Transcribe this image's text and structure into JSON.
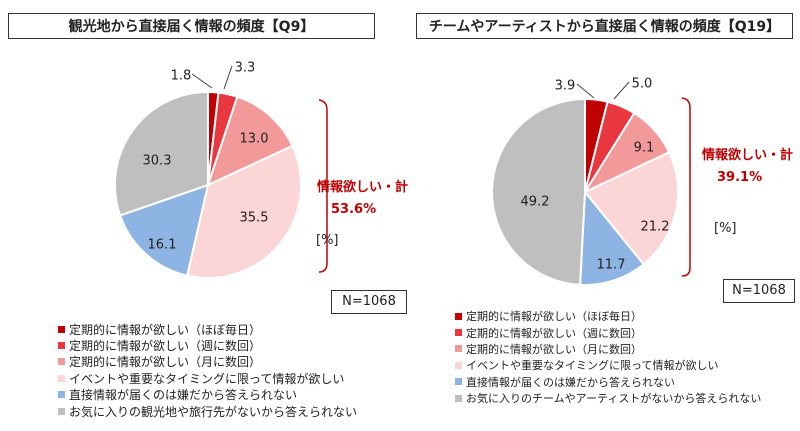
{
  "legend_colors": [
    "#c00000",
    "#e8373f",
    "#f29a9a",
    "#fcd5d6",
    "#8eb4e3",
    "#bfbfbf"
  ],
  "chart_data": [
    {
      "type": "pie",
      "title": "観光地から直接届く情報の頻度【Q9】",
      "unit": "[%]",
      "n_label": "N=1068",
      "categories": [
        "定期的に情報が欲しい（ほぼ毎日）",
        "定期的に情報が欲しい（週に数回）",
        "定期的に情報が欲しい（月に数回）",
        "イベントや重要なタイミングに限って情報が欲しい",
        "直接情報が届くのは嫌だから答えられない",
        "お気に入りの観光地や旅行先がないから答えられない"
      ],
      "values": [
        1.8,
        3.3,
        13.0,
        35.5,
        16.1,
        30.3
      ],
      "value_labels": [
        "1.8",
        "3.3",
        "13.0",
        "35.5",
        "16.1",
        "30.3"
      ],
      "annotation": {
        "label": "情報欲しい・計",
        "value": "53.6%"
      }
    },
    {
      "type": "pie",
      "title": "チームやアーティストから直接届く情報の頻度【Q19】",
      "unit": "[%]",
      "n_label": "N=1068",
      "categories": [
        "定期的に情報が欲しい（ほぼ毎日）",
        "定期的に情報が欲しい（週に数回）",
        "定期的に情報が欲しい（月に数回）",
        "イベントや重要なタイミングに限って情報が欲しい",
        "直接情報が届くのは嫌だから答えられない",
        "お気に入りのチームやアーティストがないから答えられない"
      ],
      "values": [
        3.9,
        5.0,
        9.1,
        21.2,
        11.7,
        49.2
      ],
      "value_labels": [
        "3.9",
        "5.0",
        "9.1",
        "21.2",
        "11.7",
        "49.2"
      ],
      "annotation": {
        "label": "情報欲しい・計",
        "value": "39.1%"
      }
    }
  ]
}
